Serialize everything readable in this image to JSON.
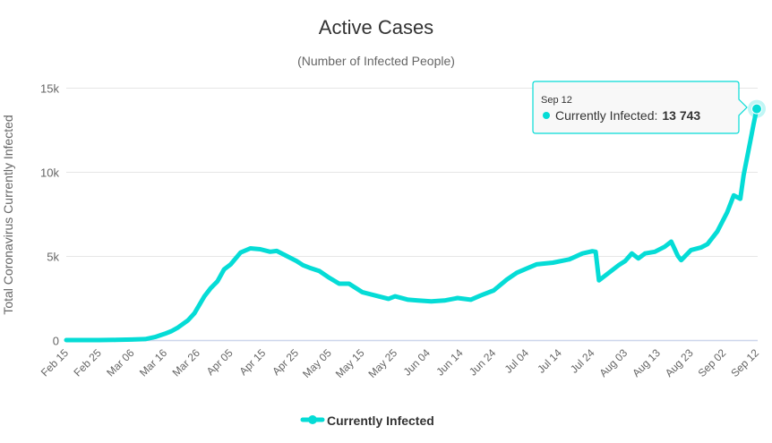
{
  "chart_data": {
    "type": "line",
    "title": "Active Cases",
    "subtitle": "(Number of Infected People)",
    "xlabel": "",
    "ylabel": "Total Coronavirus Currently Infected",
    "ylim": [
      0,
      15000
    ],
    "xlim": [
      "Feb 15",
      "Sep 12"
    ],
    "grid": true,
    "legend_position": "bottom-center",
    "y_ticks": [
      {
        "value": 0,
        "label": "0"
      },
      {
        "value": 5000,
        "label": "5k"
      },
      {
        "value": 10000,
        "label": "10k"
      },
      {
        "value": 15000,
        "label": "15k"
      }
    ],
    "x_ticks": [
      "Feb 15",
      "Feb 25",
      "Mar 06",
      "Mar 16",
      "Mar 26",
      "Apr 05",
      "Apr 15",
      "Apr 25",
      "May 05",
      "May 15",
      "May 25",
      "Jun 04",
      "Jun 14",
      "Jun 24",
      "Jul 04",
      "Jul 14",
      "Jul 24",
      "Aug 03",
      "Aug 13",
      "Aug 23",
      "Sep 02",
      "Sep 12"
    ],
    "series": [
      {
        "name": "Currently Infected",
        "color": "#05dcd6",
        "points": [
          [
            "Feb 15",
            0
          ],
          [
            "Feb 20",
            0
          ],
          [
            "Feb 25",
            0
          ],
          [
            "Mar 01",
            10
          ],
          [
            "Mar 06",
            30
          ],
          [
            "Mar 10",
            60
          ],
          [
            "Mar 13",
            180
          ],
          [
            "Mar 16",
            380
          ],
          [
            "Mar 18",
            530
          ],
          [
            "Mar 20",
            750
          ],
          [
            "Mar 23",
            1170
          ],
          [
            "Mar 25",
            1600
          ],
          [
            "Mar 28",
            2600
          ],
          [
            "Mar 30",
            3100
          ],
          [
            "Apr 01",
            3500
          ],
          [
            "Apr 03",
            4200
          ],
          [
            "Apr 05",
            4500
          ],
          [
            "Apr 08",
            5200
          ],
          [
            "Apr 11",
            5450
          ],
          [
            "Apr 14",
            5400
          ],
          [
            "Apr 17",
            5250
          ],
          [
            "Apr 19",
            5300
          ],
          [
            "Apr 22",
            5000
          ],
          [
            "Apr 25",
            4700
          ],
          [
            "Apr 27",
            4450
          ],
          [
            "Apr 29",
            4300
          ],
          [
            "May 02",
            4100
          ],
          [
            "May 05",
            3700
          ],
          [
            "May 08",
            3350
          ],
          [
            "May 11",
            3350
          ],
          [
            "May 15",
            2850
          ],
          [
            "May 19",
            2650
          ],
          [
            "May 23",
            2450
          ],
          [
            "May 25",
            2600
          ],
          [
            "May 29",
            2400
          ],
          [
            "Jun 01",
            2350
          ],
          [
            "Jun 05",
            2300
          ],
          [
            "Jun 09",
            2350
          ],
          [
            "Jun 13",
            2500
          ],
          [
            "Jun 17",
            2400
          ],
          [
            "Jun 20",
            2650
          ],
          [
            "Jun 24",
            2950
          ],
          [
            "Jun 28",
            3600
          ],
          [
            "Jul 01",
            4000
          ],
          [
            "Jul 04",
            4250
          ],
          [
            "Jul 07",
            4500
          ],
          [
            "Jul 12",
            4600
          ],
          [
            "Jul 17",
            4800
          ],
          [
            "Jul 21",
            5150
          ],
          [
            "Jul 24",
            5280
          ],
          [
            "Jul 25",
            5250
          ],
          [
            "Jul 26",
            3550
          ],
          [
            "Jul 29",
            4000
          ],
          [
            "Aug 01",
            4450
          ],
          [
            "Aug 03",
            4700
          ],
          [
            "Aug 05",
            5150
          ],
          [
            "Aug 07",
            4850
          ],
          [
            "Aug 09",
            5150
          ],
          [
            "Aug 12",
            5250
          ],
          [
            "Aug 15",
            5550
          ],
          [
            "Aug 17",
            5850
          ],
          [
            "Aug 19",
            5000
          ],
          [
            "Aug 20",
            4750
          ],
          [
            "Aug 23",
            5350
          ],
          [
            "Aug 26",
            5500
          ],
          [
            "Aug 28",
            5700
          ],
          [
            "Aug 31",
            6450
          ],
          [
            "Sep 03",
            7600
          ],
          [
            "Sep 05",
            8600
          ],
          [
            "Sep 07",
            8400
          ],
          [
            "Sep 08",
            9800
          ],
          [
            "Sep 09",
            10800
          ],
          [
            "Sep 10",
            11800
          ],
          [
            "Sep 11",
            12800
          ],
          [
            "Sep 12",
            13743
          ]
        ]
      }
    ]
  },
  "tooltip": {
    "date": "Sep 12",
    "label": "Currently Infected:",
    "value": "13 743",
    "border_color": "#05dcd6"
  },
  "legend": {
    "label": "Currently Infected"
  }
}
